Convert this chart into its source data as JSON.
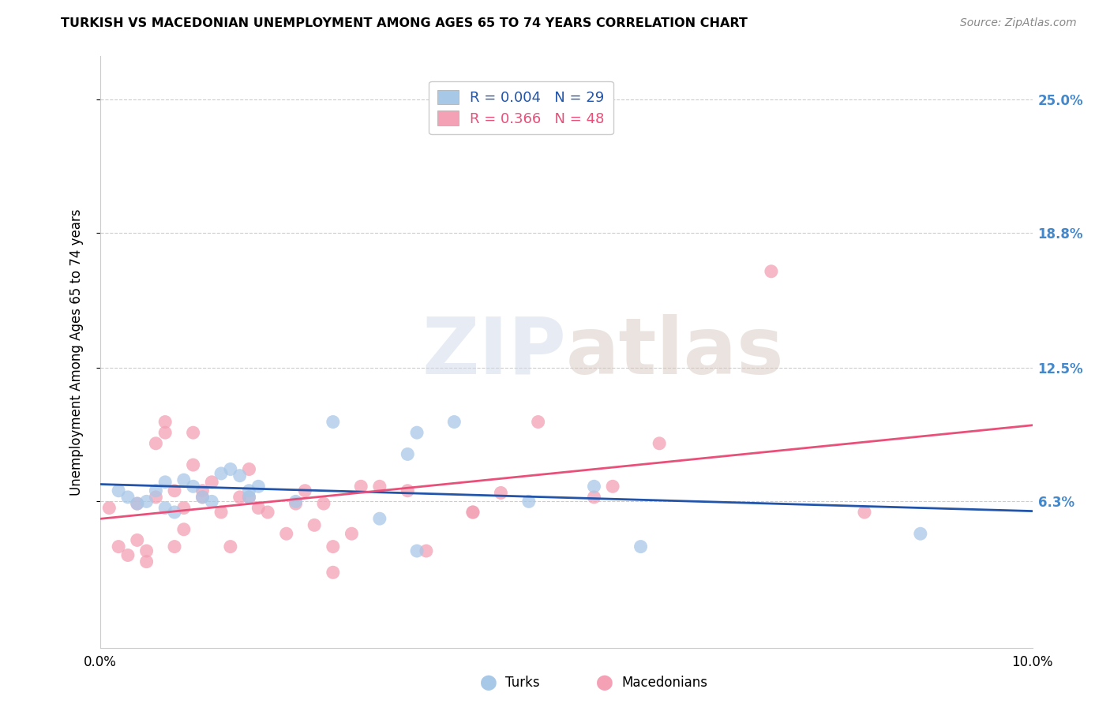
{
  "title": "TURKISH VS MACEDONIAN UNEMPLOYMENT AMONG AGES 65 TO 74 YEARS CORRELATION CHART",
  "source": "Source: ZipAtlas.com",
  "ylabel": "Unemployment Among Ages 65 to 74 years",
  "xlim": [
    0.0,
    0.1
  ],
  "ylim": [
    -0.005,
    0.27
  ],
  "yticks": [
    0.063,
    0.125,
    0.188,
    0.25
  ],
  "ytick_labels": [
    "6.3%",
    "12.5%",
    "18.8%",
    "25.0%"
  ],
  "xticks": [
    0.0,
    0.02,
    0.04,
    0.06,
    0.08,
    0.1
  ],
  "xtick_labels": [
    "0.0%",
    "",
    "",
    "",
    "",
    "10.0%"
  ],
  "turks_color": "#a8c8e8",
  "macedonians_color": "#f4a0b5",
  "turks_line_color": "#2255aa",
  "macedonians_line_color": "#e8507a",
  "R_turks": 0.004,
  "N_turks": 29,
  "R_macedonians": 0.366,
  "N_macedonians": 48,
  "turks_x": [
    0.002,
    0.003,
    0.004,
    0.005,
    0.006,
    0.007,
    0.007,
    0.008,
    0.009,
    0.01,
    0.011,
    0.012,
    0.013,
    0.014,
    0.015,
    0.016,
    0.016,
    0.017,
    0.021,
    0.025,
    0.03,
    0.033,
    0.034,
    0.038,
    0.046,
    0.053,
    0.058,
    0.034,
    0.088
  ],
  "turks_y": [
    0.068,
    0.065,
    0.062,
    0.063,
    0.068,
    0.072,
    0.06,
    0.058,
    0.073,
    0.07,
    0.065,
    0.063,
    0.076,
    0.078,
    0.075,
    0.068,
    0.065,
    0.07,
    0.063,
    0.1,
    0.055,
    0.085,
    0.095,
    0.1,
    0.063,
    0.07,
    0.042,
    0.04,
    0.048
  ],
  "macedonians_x": [
    0.001,
    0.002,
    0.003,
    0.004,
    0.004,
    0.005,
    0.005,
    0.006,
    0.006,
    0.007,
    0.007,
    0.008,
    0.008,
    0.009,
    0.009,
    0.01,
    0.01,
    0.011,
    0.011,
    0.012,
    0.013,
    0.014,
    0.015,
    0.016,
    0.016,
    0.017,
    0.018,
    0.02,
    0.021,
    0.022,
    0.023,
    0.024,
    0.025,
    0.027,
    0.028,
    0.03,
    0.033,
    0.035,
    0.04,
    0.043,
    0.047,
    0.053,
    0.055,
    0.06,
    0.04,
    0.025,
    0.072,
    0.082
  ],
  "macedonians_y": [
    0.06,
    0.042,
    0.038,
    0.045,
    0.062,
    0.035,
    0.04,
    0.065,
    0.09,
    0.095,
    0.1,
    0.042,
    0.068,
    0.06,
    0.05,
    0.08,
    0.095,
    0.068,
    0.065,
    0.072,
    0.058,
    0.042,
    0.065,
    0.078,
    0.065,
    0.06,
    0.058,
    0.048,
    0.062,
    0.068,
    0.052,
    0.062,
    0.042,
    0.048,
    0.07,
    0.07,
    0.068,
    0.04,
    0.058,
    0.067,
    0.1,
    0.065,
    0.07,
    0.09,
    0.058,
    0.03,
    0.17,
    0.058
  ]
}
